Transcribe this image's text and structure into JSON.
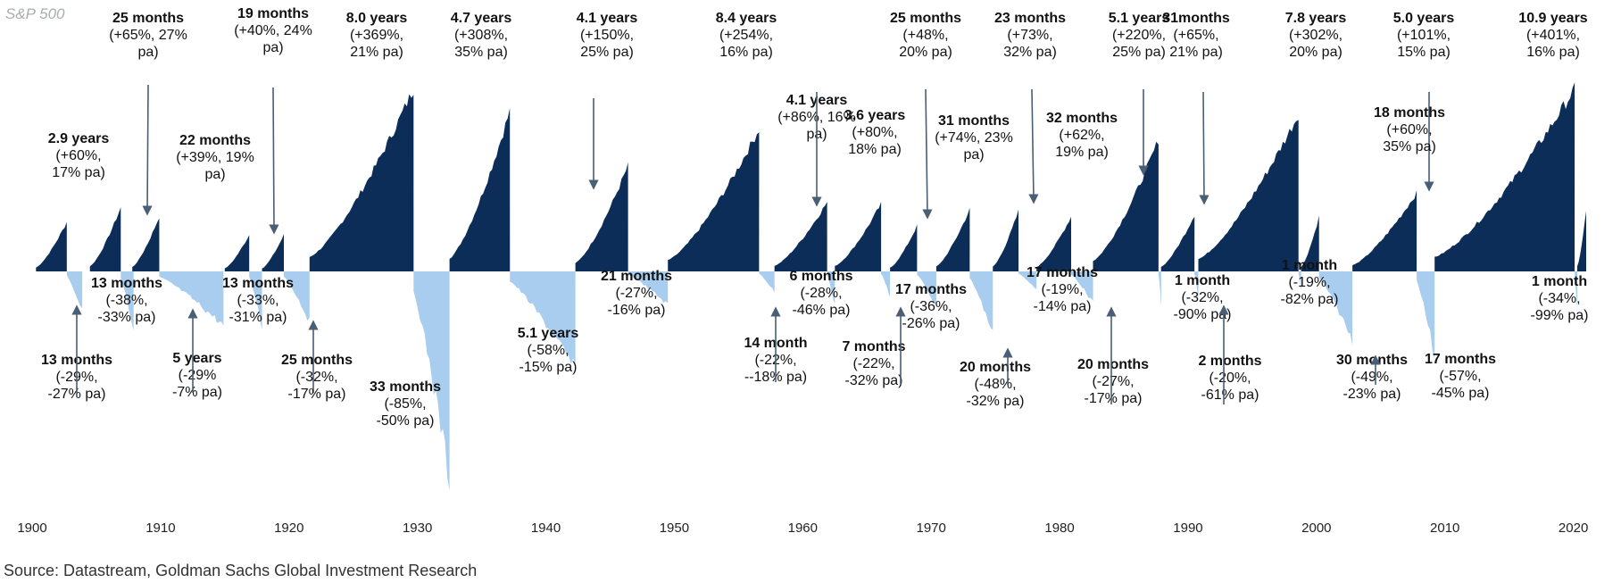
{
  "chart_data": {
    "type": "area",
    "title": "S&P 500",
    "xlabel": "",
    "ylabel": "",
    "xlim": [
      1900,
      2021
    ],
    "x_ticks": [
      "1900",
      "1910",
      "1920",
      "1930",
      "1940",
      "1950",
      "1960",
      "1970",
      "1980",
      "1990",
      "2000",
      "2010",
      "2020"
    ],
    "grid": false,
    "legend": "none",
    "colors": {
      "bull": "#0c2d57",
      "bear": "#a9cdee",
      "arrow": "#4a5e74"
    },
    "bull_markets": [
      {
        "start": 1900.3,
        "end": 1902.7,
        "peak": 0.27
      },
      {
        "start": 1904.5,
        "end": 1906.9,
        "peak": 0.35,
        "label": [
          "2.9 years",
          "(+60%,",
          "17% pa)"
        ]
      },
      {
        "start": 1907.8,
        "end": 1909.9,
        "peak": 0.3,
        "label": [
          "25 months",
          "(+65%, 27%",
          "pa)"
        ]
      },
      {
        "start": 1915.0,
        "end": 1916.9,
        "peak": 0.2,
        "label": [
          "22 months",
          "(+39%, 19%",
          "pa)"
        ]
      },
      {
        "start": 1917.9,
        "end": 1919.6,
        "peak": 0.2,
        "label": [
          "19 months",
          "(+40%, 24%",
          "pa)"
        ]
      },
      {
        "start": 1921.6,
        "end": 1929.7,
        "peak": 1.0,
        "label": [
          "8.0 years",
          "(+369%,",
          "21% pa)"
        ]
      },
      {
        "start": 1932.5,
        "end": 1937.2,
        "peak": 0.88,
        "label": [
          "4.7 years",
          "(+308%,",
          "35% pa)"
        ]
      },
      {
        "start": 1942.3,
        "end": 1946.4,
        "peak": 0.58,
        "label": [
          "4.1  years",
          "(+150%,",
          "25% pa)"
        ]
      },
      {
        "start": 1949.5,
        "end": 1956.6,
        "peak": 0.78,
        "label": [
          "8.4 years",
          "(+254%,",
          "16% pa)"
        ]
      },
      {
        "start": 1957.8,
        "end": 1961.9,
        "peak": 0.38,
        "label": [
          "4.1 years",
          "(+86%, 16%",
          "pa)"
        ]
      },
      {
        "start": 1962.5,
        "end": 1966.1,
        "peak": 0.37,
        "label": [
          "3.6 years",
          "(+80%,",
          "18% pa)"
        ]
      },
      {
        "start": 1966.8,
        "end": 1968.9,
        "peak": 0.25,
        "label": [
          "25 months",
          "(+48%,",
          "20% pa)"
        ]
      },
      {
        "start": 1970.4,
        "end": 1973.0,
        "peak": 0.34,
        "label": [
          "31 months",
          "(+74%, 23%",
          "pa)"
        ]
      },
      {
        "start": 1974.8,
        "end": 1976.8,
        "peak": 0.33,
        "label": [
          "23 months",
          "(+73%,",
          "32% pa)"
        ]
      },
      {
        "start": 1978.2,
        "end": 1980.9,
        "peak": 0.3,
        "label": [
          "32 months",
          "(+62%,",
          "19% pa)"
        ]
      },
      {
        "start": 1982.6,
        "end": 1987.7,
        "peak": 0.72,
        "label": [
          "5.1 years",
          "(+220%,",
          "25% pa)"
        ]
      },
      {
        "start": 1987.9,
        "end": 1990.5,
        "peak": 0.31,
        "label": [
          "31months",
          "(+65%,",
          "21% pa)"
        ]
      },
      {
        "start": 1990.8,
        "end": 1998.6,
        "peak": 0.86,
        "label": [
          "7.8 years",
          "(+302%,",
          "20% pa)"
        ]
      },
      {
        "start": 1998.8,
        "end": 2000.2,
        "peak": 0.3
      },
      {
        "start": 2002.8,
        "end": 2007.8,
        "peak": 0.43,
        "label": [
          "5.0 years",
          "(+101%,",
          "15% pa)"
        ]
      },
      {
        "start": 2009.2,
        "end": 2020.1,
        "peak": 1.0,
        "label": [
          "10.9 years",
          "(+401%,",
          "16% pa)"
        ]
      },
      {
        "start": 2020.3,
        "end": 2021.0,
        "peak": 0.33,
        "label": [
          "18 months",
          "(+60%,",
          "35% pa)"
        ]
      }
    ],
    "bear_markets": [
      {
        "start": 1902.7,
        "end": 1903.9,
        "trough": 0.19,
        "label": [
          "13 months",
          "(-29%,",
          "-27% pa)"
        ]
      },
      {
        "start": 1906.9,
        "end": 1907.9,
        "trough": 0.3,
        "label": [
          "13 months",
          "(-38%,",
          "-33% pa)"
        ]
      },
      {
        "start": 1909.9,
        "end": 1914.9,
        "trough": 0.26,
        "label": [
          "5 years",
          "(-29%",
          "-7% pa)"
        ]
      },
      {
        "start": 1916.9,
        "end": 1917.9,
        "trough": 0.27,
        "label": [
          "13 months",
          "(-33%,",
          "-31% pa)"
        ]
      },
      {
        "start": 1919.6,
        "end": 1921.6,
        "trough": 0.24,
        "label": [
          "25 months",
          "(-32%,",
          "-17% pa)"
        ]
      },
      {
        "start": 1929.7,
        "end": 1932.5,
        "trough": 1.0,
        "label": [
          "33 months",
          "(-85%,",
          "-50% pa)"
        ]
      },
      {
        "start": 1937.2,
        "end": 1942.3,
        "trough": 0.47,
        "label": [
          "5.1 years",
          "(-58%,",
          "-15% pa)"
        ]
      },
      {
        "start": 1946.4,
        "end": 1949.5,
        "trough": 0.16,
        "label": [
          "21 months",
          "(-27%,",
          "-16% pa)"
        ]
      },
      {
        "start": 1956.6,
        "end": 1957.8,
        "trough": 0.1,
        "label": [
          "14 month",
          "(-22%,",
          "--18% pa)"
        ]
      },
      {
        "start": 1961.9,
        "end": 1962.5,
        "trough": 0.16,
        "label": [
          "6 months",
          "(-28%,",
          "-46% pa)"
        ]
      },
      {
        "start": 1966.1,
        "end": 1966.8,
        "trough": 0.12,
        "label": [
          "7 months",
          "(-22%,",
          "-32% pa)"
        ]
      },
      {
        "start": 1968.9,
        "end": 1970.4,
        "trough": 0.17,
        "label": [
          "17 months",
          "(-36%,",
          "-26% pa)"
        ]
      },
      {
        "start": 1973.0,
        "end": 1974.8,
        "trough": 0.3,
        "label": [
          "20 months",
          "(-48%,",
          "-32% pa)"
        ]
      },
      {
        "start": 1976.8,
        "end": 1978.2,
        "trough": 0.09,
        "label": [
          "17 months",
          "(-19%,",
          "-14% pa)"
        ]
      },
      {
        "start": 1980.9,
        "end": 1982.6,
        "trough": 0.15,
        "label": [
          "20 months",
          "(-27%,",
          "-17% pa)"
        ]
      },
      {
        "start": 1987.7,
        "end": 1987.9,
        "trough": 0.16,
        "label": [
          "1 month",
          "(-32%,",
          "-90% pa)"
        ]
      },
      {
        "start": 1990.5,
        "end": 1990.8,
        "trough": 0.13,
        "label": [
          "2 months",
          "(-20%,",
          "-61% pa)"
        ]
      },
      {
        "start": 1998.6,
        "end": 1998.8,
        "trough": 0.09,
        "label": [
          "1 month",
          "(-19%,",
          "-82% pa)"
        ]
      },
      {
        "start": 2000.2,
        "end": 2002.8,
        "trough": 0.33,
        "label": [
          "30 months",
          "(-49%,",
          "-23% pa)"
        ]
      },
      {
        "start": 2007.8,
        "end": 2009.2,
        "trough": 0.41,
        "label": [
          "17 months",
          "(-57%,",
          "-45% pa)"
        ]
      },
      {
        "start": 2020.1,
        "end": 2020.3,
        "trough": 0.2,
        "label": [
          "1 month",
          "(-34%,",
          "-99% pa)"
        ]
      }
    ]
  },
  "source": "Source: Datastream, Goldman Sachs Global Investment Research"
}
